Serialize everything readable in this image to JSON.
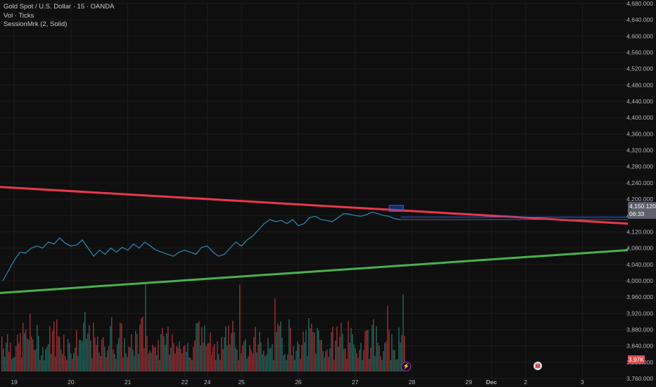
{
  "legend": {
    "symbol": "Gold Spot / U.S. Dollar · 15 · OANDA",
    "vol": "Vol · Ticks",
    "session": "SessionMrk (2, Solid)"
  },
  "badges": {
    "price": "4,150.120",
    "countdown": "06:33",
    "volume": "3.97K"
  },
  "icons": {
    "event_bolt": "bolt-icon",
    "event_flag": "us-flag-icon"
  },
  "colors": {
    "background": "#0f0f0f",
    "price_line": "#2a8bb8",
    "resistance": "#e8394a",
    "support": "#4caf50",
    "vol_up": "#22675e",
    "vol_down": "#9b2f34",
    "zone": "#2962ff"
  },
  "chart_data": {
    "type": "line",
    "y_ticks": [
      "4,680.000",
      "4,640.000",
      "4,600.000",
      "4,560.000",
      "4,520.000",
      "4,480.000",
      "4,440.000",
      "4,400.000",
      "4,360.000",
      "4,320.000",
      "4,280.000",
      "4,240.000",
      "4,200.000",
      "4,160.000",
      "4,120.000",
      "4,080.000",
      "4,040.000",
      "4,000.000",
      "3,960.000",
      "3,920.000",
      "3,880.000",
      "3,840.000",
      "3,800.000",
      "3,760.000"
    ],
    "ylim": [
      3760,
      4680
    ],
    "x_ticks": [
      "19",
      "20",
      "21",
      "22",
      "24",
      "25",
      "26",
      "27",
      "28",
      "29",
      "Dec",
      "2",
      "3"
    ],
    "x_tick_days": [
      0,
      1,
      2,
      3,
      3.4,
      4,
      5,
      6,
      7,
      8,
      8.4,
      9,
      10
    ],
    "xlim": [
      -0.25,
      10.8
    ],
    "price_series": {
      "x": [
        -0.2,
        -0.1,
        0,
        0.1,
        0.2,
        0.3,
        0.4,
        0.5,
        0.6,
        0.7,
        0.8,
        0.9,
        1.0,
        1.1,
        1.2,
        1.3,
        1.4,
        1.5,
        1.6,
        1.7,
        1.8,
        1.9,
        2.0,
        2.1,
        2.2,
        2.3,
        2.4,
        2.5,
        2.6,
        2.7,
        2.8,
        2.9,
        3.0,
        3.1,
        3.2,
        3.3,
        3.4,
        3.5,
        3.6,
        3.7,
        3.8,
        3.9,
        4.0,
        4.1,
        4.2,
        4.3,
        4.4,
        4.5,
        4.6,
        4.7,
        4.8,
        4.9,
        5.0,
        5.1,
        5.2,
        5.3,
        5.4,
        5.5,
        5.6,
        5.7,
        5.8,
        5.9,
        6.0,
        6.1,
        6.2,
        6.3,
        6.4,
        6.5,
        6.6,
        6.7,
        6.8
      ],
      "y": [
        4000,
        4025,
        4050,
        4070,
        4068,
        4080,
        4085,
        4080,
        4095,
        4090,
        4105,
        4092,
        4085,
        4088,
        4100,
        4080,
        4060,
        4075,
        4065,
        4080,
        4070,
        4082,
        4075,
        4090,
        4080,
        4095,
        4085,
        4075,
        4070,
        4065,
        4060,
        4070,
        4075,
        4070,
        4065,
        4082,
        4085,
        4070,
        4060,
        4065,
        4080,
        4095,
        4085,
        4100,
        4110,
        4125,
        4140,
        4150,
        4145,
        4148,
        4140,
        4150,
        4135,
        4140,
        4155,
        4158,
        4150,
        4148,
        4145,
        4155,
        4165,
        4163,
        4160,
        4158,
        4162,
        4168,
        4165,
        4160,
        4158,
        4152,
        4150
      ]
    },
    "lines": [
      {
        "label": "resistance",
        "x": [
          -0.25,
          10.8
        ],
        "y": [
          4230,
          4140
        ]
      },
      {
        "label": "support",
        "x": [
          -0.25,
          10.8
        ],
        "y": [
          3970,
          4075
        ]
      },
      {
        "label": "level",
        "x": [
          6.8,
          10.8
        ],
        "y": [
          4156,
          4156
        ]
      },
      {
        "label": "level",
        "x": [
          6.8,
          10.8
        ],
        "y": [
          4150,
          4150
        ]
      }
    ],
    "zone": {
      "x": [
        6.6,
        6.85
      ],
      "y": [
        4170,
        4185
      ]
    },
    "volume_max": 10000,
    "last_price": 4150.12,
    "grid": true,
    "legend_position": "top-left"
  }
}
